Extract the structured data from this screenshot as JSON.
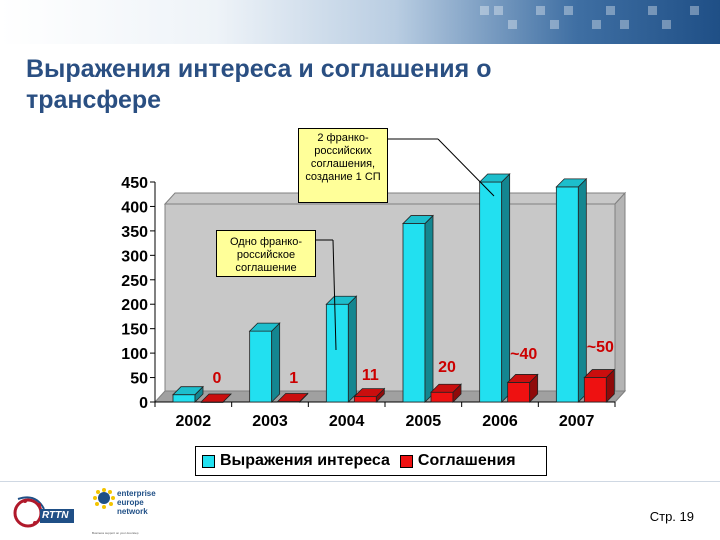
{
  "title": "Выражения интереса и соглашения о трансфере",
  "callouts": {
    "top": "2 франко-российских соглашения, создание 1 СП",
    "middle": "Одно франко-российское соглашение"
  },
  "footer": {
    "page": "Стр. 19",
    "logo_rttn": "RTTN",
    "logo_een_line1": "enterprise",
    "logo_een_line2": "europe",
    "logo_een_line3": "network",
    "logo_een_tagline": "Business support on your doorstep"
  },
  "colors": {
    "interest": "#22e0f0",
    "agreements": "#ee1111",
    "title": "#2a4f82",
    "callout_bg": "#ffff99"
  },
  "chart_data": {
    "type": "bar",
    "categories": [
      "2002",
      "2003",
      "2004",
      "2005",
      "2006",
      "2007"
    ],
    "series": [
      {
        "name": "Выражения интереса",
        "values": [
          15,
          145,
          200,
          365,
          450,
          440
        ]
      },
      {
        "name": "Соглашения",
        "values": [
          0,
          1,
          11,
          20,
          40,
          50
        ]
      }
    ],
    "data_labels": [
      "0",
      "1",
      "11",
      "20",
      "~40",
      "~50"
    ],
    "yticks": [
      "0",
      "50",
      "100",
      "150",
      "200",
      "250",
      "300",
      "350",
      "400",
      "450"
    ],
    "ylim": [
      0,
      450
    ],
    "legend": "bottom",
    "grid": false
  }
}
